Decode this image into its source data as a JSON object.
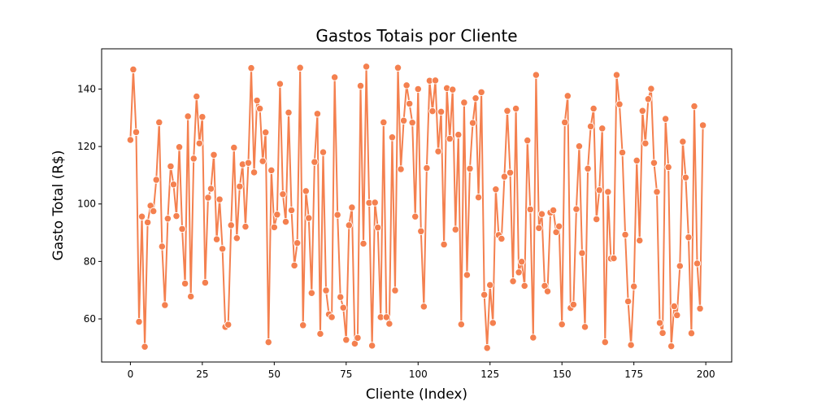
{
  "chart_data": {
    "type": "line",
    "title": "Gastos Totais por Cliente",
    "xlabel": "Cliente (Index)",
    "ylabel": "Gasto Total (R$)",
    "xlim": [
      -10,
      209
    ],
    "ylim": [
      45,
      154
    ],
    "xticks": [
      0,
      25,
      50,
      75,
      100,
      125,
      150,
      175,
      200
    ],
    "yticks": [
      60,
      80,
      100,
      120,
      140
    ],
    "grid": false,
    "line_color": "#f4804f",
    "marker_edge_color": "#ffffff",
    "series": [
      {
        "values": [
          122.3,
          146.8,
          125.0,
          59.0,
          95.6,
          50.3,
          93.6,
          99.4,
          97.5,
          108.4,
          128.4,
          85.2,
          64.8,
          94.9,
          113.1,
          106.8,
          95.8,
          119.8,
          91.3,
          72.3,
          130.5,
          67.8,
          115.8,
          137.4,
          121.1,
          130.3,
          72.6,
          102.2,
          105.3,
          117.1,
          87.7,
          101.6,
          84.4,
          57.2,
          58.0,
          92.6,
          119.6,
          88.1,
          106.1,
          113.8,
          92.1,
          114.3,
          147.3,
          111.0,
          136.0,
          133.2,
          114.9,
          124.9,
          51.9,
          111.7,
          91.9,
          96.3,
          141.8,
          103.4,
          93.8,
          131.8,
          97.8,
          78.6,
          86.4,
          147.4,
          57.8,
          104.5,
          95.1,
          69.0,
          114.6,
          131.4,
          54.8,
          118.0,
          69.9,
          61.6,
          60.6,
          144.1,
          96.2,
          67.6,
          63.9,
          52.7,
          92.6,
          98.8,
          51.4,
          53.4,
          141.1,
          86.2,
          147.8,
          100.4,
          50.7,
          100.5,
          91.8,
          60.6,
          128.4,
          60.6,
          58.3,
          123.2,
          69.9,
          147.4,
          112.1,
          129.0,
          141.3,
          134.9,
          128.3,
          95.6,
          140.0,
          90.5,
          64.3,
          112.5,
          142.9,
          132.3,
          143.0,
          118.3,
          132.1,
          85.9,
          140.3,
          122.7,
          139.8,
          91.1,
          124.1,
          58.1,
          135.3,
          75.3,
          112.3,
          128.2,
          136.8,
          102.3,
          138.9,
          68.4,
          49.9,
          71.8,
          58.6,
          105.1,
          89.2,
          87.9,
          109.5,
          132.4,
          110.9,
          73.1,
          133.2,
          76.2,
          79.9,
          71.5,
          122.1,
          98.1,
          53.5,
          144.9,
          91.6,
          96.5,
          71.5,
          69.6,
          97.0,
          97.8,
          90.2,
          92.2,
          58.1,
          128.4,
          137.6,
          63.8,
          65.0,
          98.2,
          120.1,
          82.9,
          57.2,
          112.3,
          127.0,
          133.2,
          94.7,
          104.8,
          126.3,
          51.9,
          104.2,
          81.0,
          81.1,
          144.9,
          134.7,
          117.9,
          89.3,
          66.1,
          50.9,
          71.3,
          115.1,
          87.3,
          132.4,
          121.1,
          136.5,
          140.1,
          114.3,
          104.2,
          58.6,
          55.1,
          129.6,
          112.8,
          50.5,
          64.4,
          61.3,
          78.4,
          121.7,
          109.2,
          88.4,
          55.0,
          134.0,
          79.3,
          63.6,
          127.4
        ]
      }
    ]
  }
}
